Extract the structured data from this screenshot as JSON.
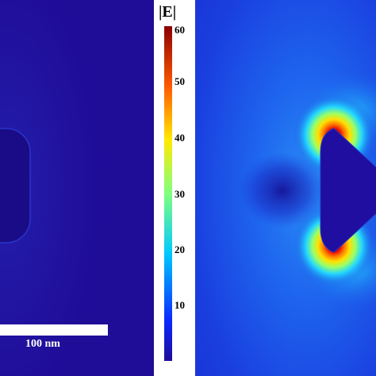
{
  "colorbar": {
    "title": "|E|",
    "ticks": [
      "60",
      "50",
      "40",
      "30",
      "20",
      "10"
    ],
    "range": [
      0,
      60
    ]
  },
  "scale_bar": {
    "label": "100 nm"
  },
  "colors": {
    "background_low": "#1f0c97",
    "field_medium": "#1e7df0",
    "hotspot": "#d60000"
  }
}
